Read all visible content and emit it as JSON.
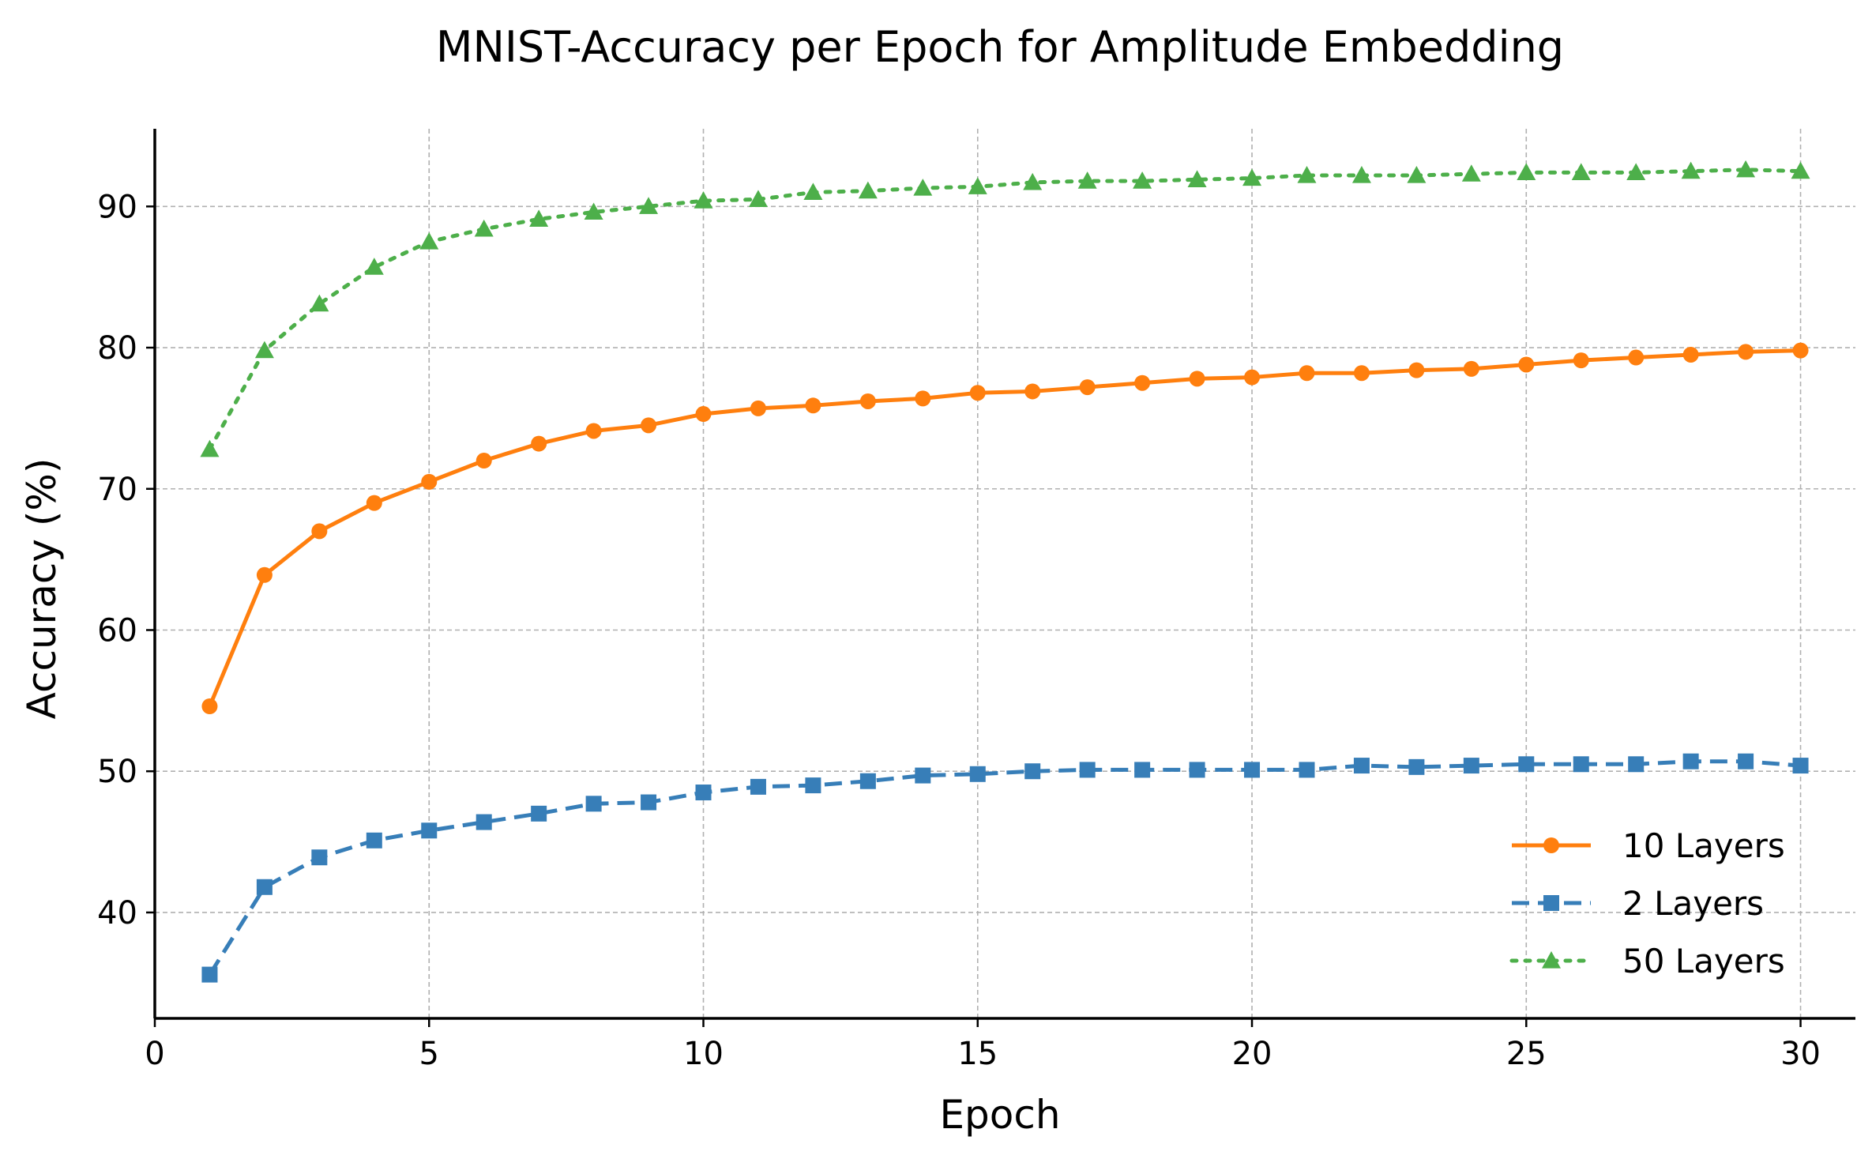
{
  "chart_data": {
    "type": "line",
    "title": "MNIST-Accuracy per Epoch for Amplitude Embedding",
    "xlabel": "Epoch",
    "ylabel": "Accuracy (%)",
    "xlim": [
      0,
      31
    ],
    "ylim": [
      32.5,
      95.5
    ],
    "xticks": [
      0,
      5,
      10,
      15,
      20,
      25,
      30
    ],
    "yticks": [
      40,
      50,
      60,
      70,
      80,
      90
    ],
    "grid": true,
    "legend_position": "lower-right",
    "x": [
      1,
      2,
      3,
      4,
      5,
      6,
      7,
      8,
      9,
      10,
      11,
      12,
      13,
      14,
      15,
      16,
      17,
      18,
      19,
      20,
      21,
      22,
      23,
      24,
      25,
      26,
      27,
      28,
      29,
      30
    ],
    "series": [
      {
        "name": "10 Layers",
        "color": "#ff7f0e",
        "line_style": "solid",
        "marker": "circle",
        "values": [
          54.6,
          63.9,
          67.0,
          69.0,
          70.5,
          72.0,
          73.2,
          74.1,
          74.5,
          75.3,
          75.7,
          75.9,
          76.2,
          76.4,
          76.8,
          76.9,
          77.2,
          77.5,
          77.8,
          77.9,
          78.2,
          78.2,
          78.4,
          78.5,
          78.8,
          79.1,
          79.3,
          79.5,
          79.7,
          79.8
        ]
      },
      {
        "name": "2 Layers",
        "color": "#377eb8",
        "line_style": "dashed",
        "marker": "square",
        "values": [
          35.6,
          41.8,
          43.9,
          45.1,
          45.8,
          46.4,
          47.0,
          47.7,
          47.8,
          48.5,
          48.9,
          49.0,
          49.3,
          49.7,
          49.8,
          50.0,
          50.1,
          50.1,
          50.1,
          50.1,
          50.1,
          50.4,
          50.3,
          50.4,
          50.5,
          50.5,
          50.5,
          50.7,
          50.7,
          50.4
        ]
      },
      {
        "name": "50 Layers",
        "color": "#4daf4a",
        "line_style": "dotted",
        "marker": "triangle",
        "values": [
          72.8,
          79.8,
          83.1,
          85.7,
          87.5,
          88.4,
          89.1,
          89.6,
          90.0,
          90.4,
          90.5,
          91.0,
          91.1,
          91.3,
          91.4,
          91.7,
          91.8,
          91.8,
          91.9,
          92.0,
          92.2,
          92.2,
          92.2,
          92.3,
          92.4,
          92.4,
          92.4,
          92.5,
          92.6,
          92.5
        ]
      }
    ]
  }
}
